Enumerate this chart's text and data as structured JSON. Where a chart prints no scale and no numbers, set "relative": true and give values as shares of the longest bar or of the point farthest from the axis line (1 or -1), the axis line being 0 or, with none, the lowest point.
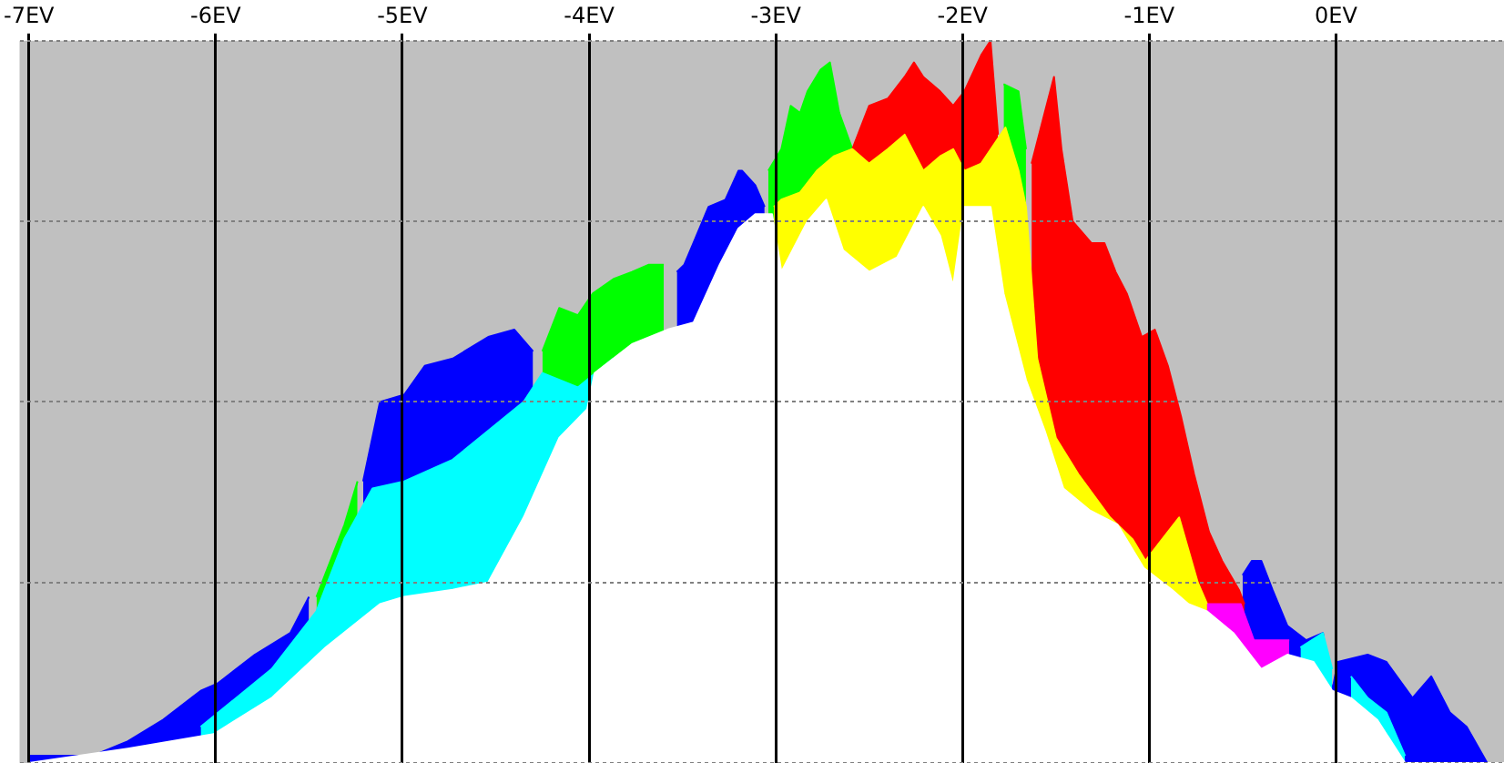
{
  "chart_data": {
    "type": "area",
    "relative": true,
    "grid": true,
    "legend": false,
    "marker": "none",
    "xlim": [
      -7.05,
      0.9
    ],
    "xticks": [
      {
        "value": -7,
        "label": "-7EV"
      },
      {
        "value": -6,
        "label": "-6EV"
      },
      {
        "value": -5,
        "label": "-5EV"
      },
      {
        "value": -4,
        "label": "-4EV"
      },
      {
        "value": -3,
        "label": "-3EV"
      },
      {
        "value": -2,
        "label": "-2EV"
      },
      {
        "value": -1,
        "label": "-1EV"
      },
      {
        "value": 0,
        "label": "0EV"
      }
    ],
    "series": [
      {
        "color": "#0000ff",
        "x": [
          -7.0,
          -6.66,
          -6.47,
          -6.28,
          -6.08,
          -5.99,
          -5.79,
          -5.6,
          -5.5,
          -5.35,
          -5.21,
          -5.12,
          -4.99,
          -4.88,
          -4.73,
          -4.54,
          -4.4,
          -4.3,
          -3.9,
          -3.53,
          -3.49,
          -3.36,
          -3.27,
          -3.2,
          -3.18,
          -3.11,
          -3.06,
          -1.0,
          -0.5,
          -0.45,
          -0.4,
          -0.34,
          -0.26,
          -0.16,
          -0.07,
          -0.02,
          0.01,
          0.17,
          0.27,
          0.41,
          0.51,
          0.61,
          0.7,
          0.81
        ],
        "values": [
          0.01,
          0.01,
          0.03,
          0.06,
          0.1,
          0.11,
          0.15,
          0.18,
          0.23,
          null,
          0.39,
          0.5,
          0.51,
          0.55,
          0.56,
          0.59,
          0.6,
          0.57,
          null,
          0.68,
          0.69,
          0.77,
          0.78,
          0.82,
          0.82,
          0.8,
          0.77,
          null,
          0.26,
          0.28,
          0.28,
          0.24,
          0.19,
          0.17,
          0.18,
          0.1,
          0.14,
          0.15,
          0.14,
          0.09,
          0.12,
          0.07,
          0.05,
          0.0
        ]
      },
      {
        "color": "#00ff00",
        "x": [
          -5.46,
          -5.31,
          -5.24,
          -4.8,
          -4.25,
          -4.16,
          -4.06,
          -3.98,
          -3.87,
          -3.77,
          -3.68,
          -3.6,
          -3.3,
          -3.04,
          -2.97,
          -2.92,
          -2.87,
          -2.83,
          -2.76,
          -2.71,
          -2.66,
          -2.59,
          -2.2,
          -1.78,
          -1.7,
          -1.66
        ],
        "values": [
          0.23,
          0.33,
          0.39,
          null,
          0.57,
          0.63,
          0.62,
          0.65,
          0.67,
          0.68,
          0.69,
          0.69,
          null,
          0.82,
          0.85,
          0.91,
          0.9,
          0.93,
          0.96,
          0.97,
          0.9,
          0.85,
          null,
          0.94,
          0.93,
          0.85
        ]
      },
      {
        "color": "#ff0000",
        "x": [
          -2.59,
          -2.5,
          -2.4,
          -2.31,
          -2.26,
          -2.21,
          -2.12,
          -2.05,
          -1.99,
          -1.9,
          -1.85,
          -1.81,
          -1.72,
          -1.63,
          -1.56,
          -1.51,
          -1.47,
          -1.41,
          -1.31,
          -1.24,
          -1.18,
          -1.12,
          -1.04,
          -0.97,
          -0.9,
          -0.83,
          -0.76,
          -0.68,
          -0.61,
          -0.52,
          -0.49
        ],
        "values": [
          0.85,
          0.91,
          0.92,
          0.95,
          0.97,
          0.95,
          0.93,
          0.91,
          0.93,
          0.98,
          1.0,
          0.87,
          null,
          0.83,
          0.9,
          0.95,
          0.85,
          0.75,
          0.72,
          0.72,
          0.68,
          0.65,
          0.59,
          0.6,
          0.55,
          0.48,
          0.4,
          0.32,
          0.28,
          0.24,
          0.22
        ]
      },
      {
        "color": "#ffff00",
        "x": [
          -3.01,
          -2.97,
          -2.87,
          -2.78,
          -2.69,
          -2.59,
          -2.5,
          -2.4,
          -2.31,
          -2.21,
          -2.12,
          -2.05,
          -1.99,
          -1.9,
          -1.77,
          -1.7,
          -1.66,
          -1.6,
          -1.5,
          -1.38,
          -1.21,
          -1.09,
          -1.02,
          -0.84,
          -0.74,
          -0.69
        ],
        "values": [
          0.77,
          0.78,
          0.79,
          0.82,
          0.84,
          0.85,
          0.83,
          0.85,
          0.87,
          0.82,
          0.84,
          0.85,
          0.82,
          0.83,
          0.88,
          0.82,
          0.77,
          0.56,
          0.45,
          0.4,
          0.34,
          0.31,
          0.28,
          0.34,
          0.25,
          0.22
        ]
      },
      {
        "color": "#00ffff",
        "x": [
          -6.08,
          -5.7,
          -5.46,
          -5.31,
          -5.16,
          -4.99,
          -4.73,
          -4.54,
          -4.35,
          -4.25,
          -4.06,
          -3.87,
          -1.5,
          -0.19,
          -0.07,
          -0.02,
          0.04,
          0.08,
          0.17,
          0.27,
          0.37
        ],
        "values": [
          0.05,
          0.13,
          0.21,
          0.31,
          0.38,
          0.39,
          0.42,
          0.46,
          0.5,
          0.54,
          0.52,
          0.56,
          null,
          0.16,
          0.18,
          0.13,
          null,
          0.12,
          0.09,
          0.07,
          0.01
        ]
      },
      {
        "color": "#ff00ff",
        "x": [
          -0.69,
          -0.51,
          -0.44,
          -0.38,
          -0.25
        ],
        "values": [
          0.22,
          0.22,
          0.17,
          0.17,
          0.17
        ]
      },
      {
        "color": "#ffffff",
        "x": [
          -7.0,
          -6.47,
          -6.01,
          -5.7,
          -5.41,
          -5.12,
          -4.99,
          -4.73,
          -4.54,
          -4.35,
          -4.16,
          -4.01,
          -3.97,
          -3.77,
          -3.58,
          -3.44,
          -3.3,
          -3.2,
          -3.11,
          -3.02,
          -2.97,
          -2.83,
          -2.73,
          -2.64,
          -2.5,
          -2.35,
          -2.21,
          -2.12,
          -2.05,
          -1.99,
          -1.85,
          -1.78,
          -1.66,
          -1.56,
          -1.46,
          -1.32,
          -1.17,
          -1.03,
          -0.88,
          -0.79,
          -0.69,
          -0.55,
          -0.4,
          -0.26,
          -0.12,
          -0.02,
          0.08,
          0.22,
          0.37,
          0.9
        ],
        "values": [
          0.0,
          0.02,
          0.04,
          0.09,
          0.16,
          0.22,
          0.23,
          0.24,
          0.25,
          0.34,
          0.45,
          0.49,
          0.54,
          0.58,
          0.6,
          0.61,
          0.69,
          0.74,
          0.76,
          0.76,
          0.68,
          0.75,
          0.78,
          0.71,
          0.68,
          0.7,
          0.77,
          0.73,
          0.66,
          0.77,
          0.77,
          0.65,
          0.53,
          0.46,
          0.38,
          0.35,
          0.33,
          0.27,
          0.24,
          0.22,
          0.21,
          0.18,
          0.13,
          0.15,
          0.14,
          0.1,
          0.09,
          0.06,
          0.0,
          0.0
        ]
      }
    ]
  }
}
